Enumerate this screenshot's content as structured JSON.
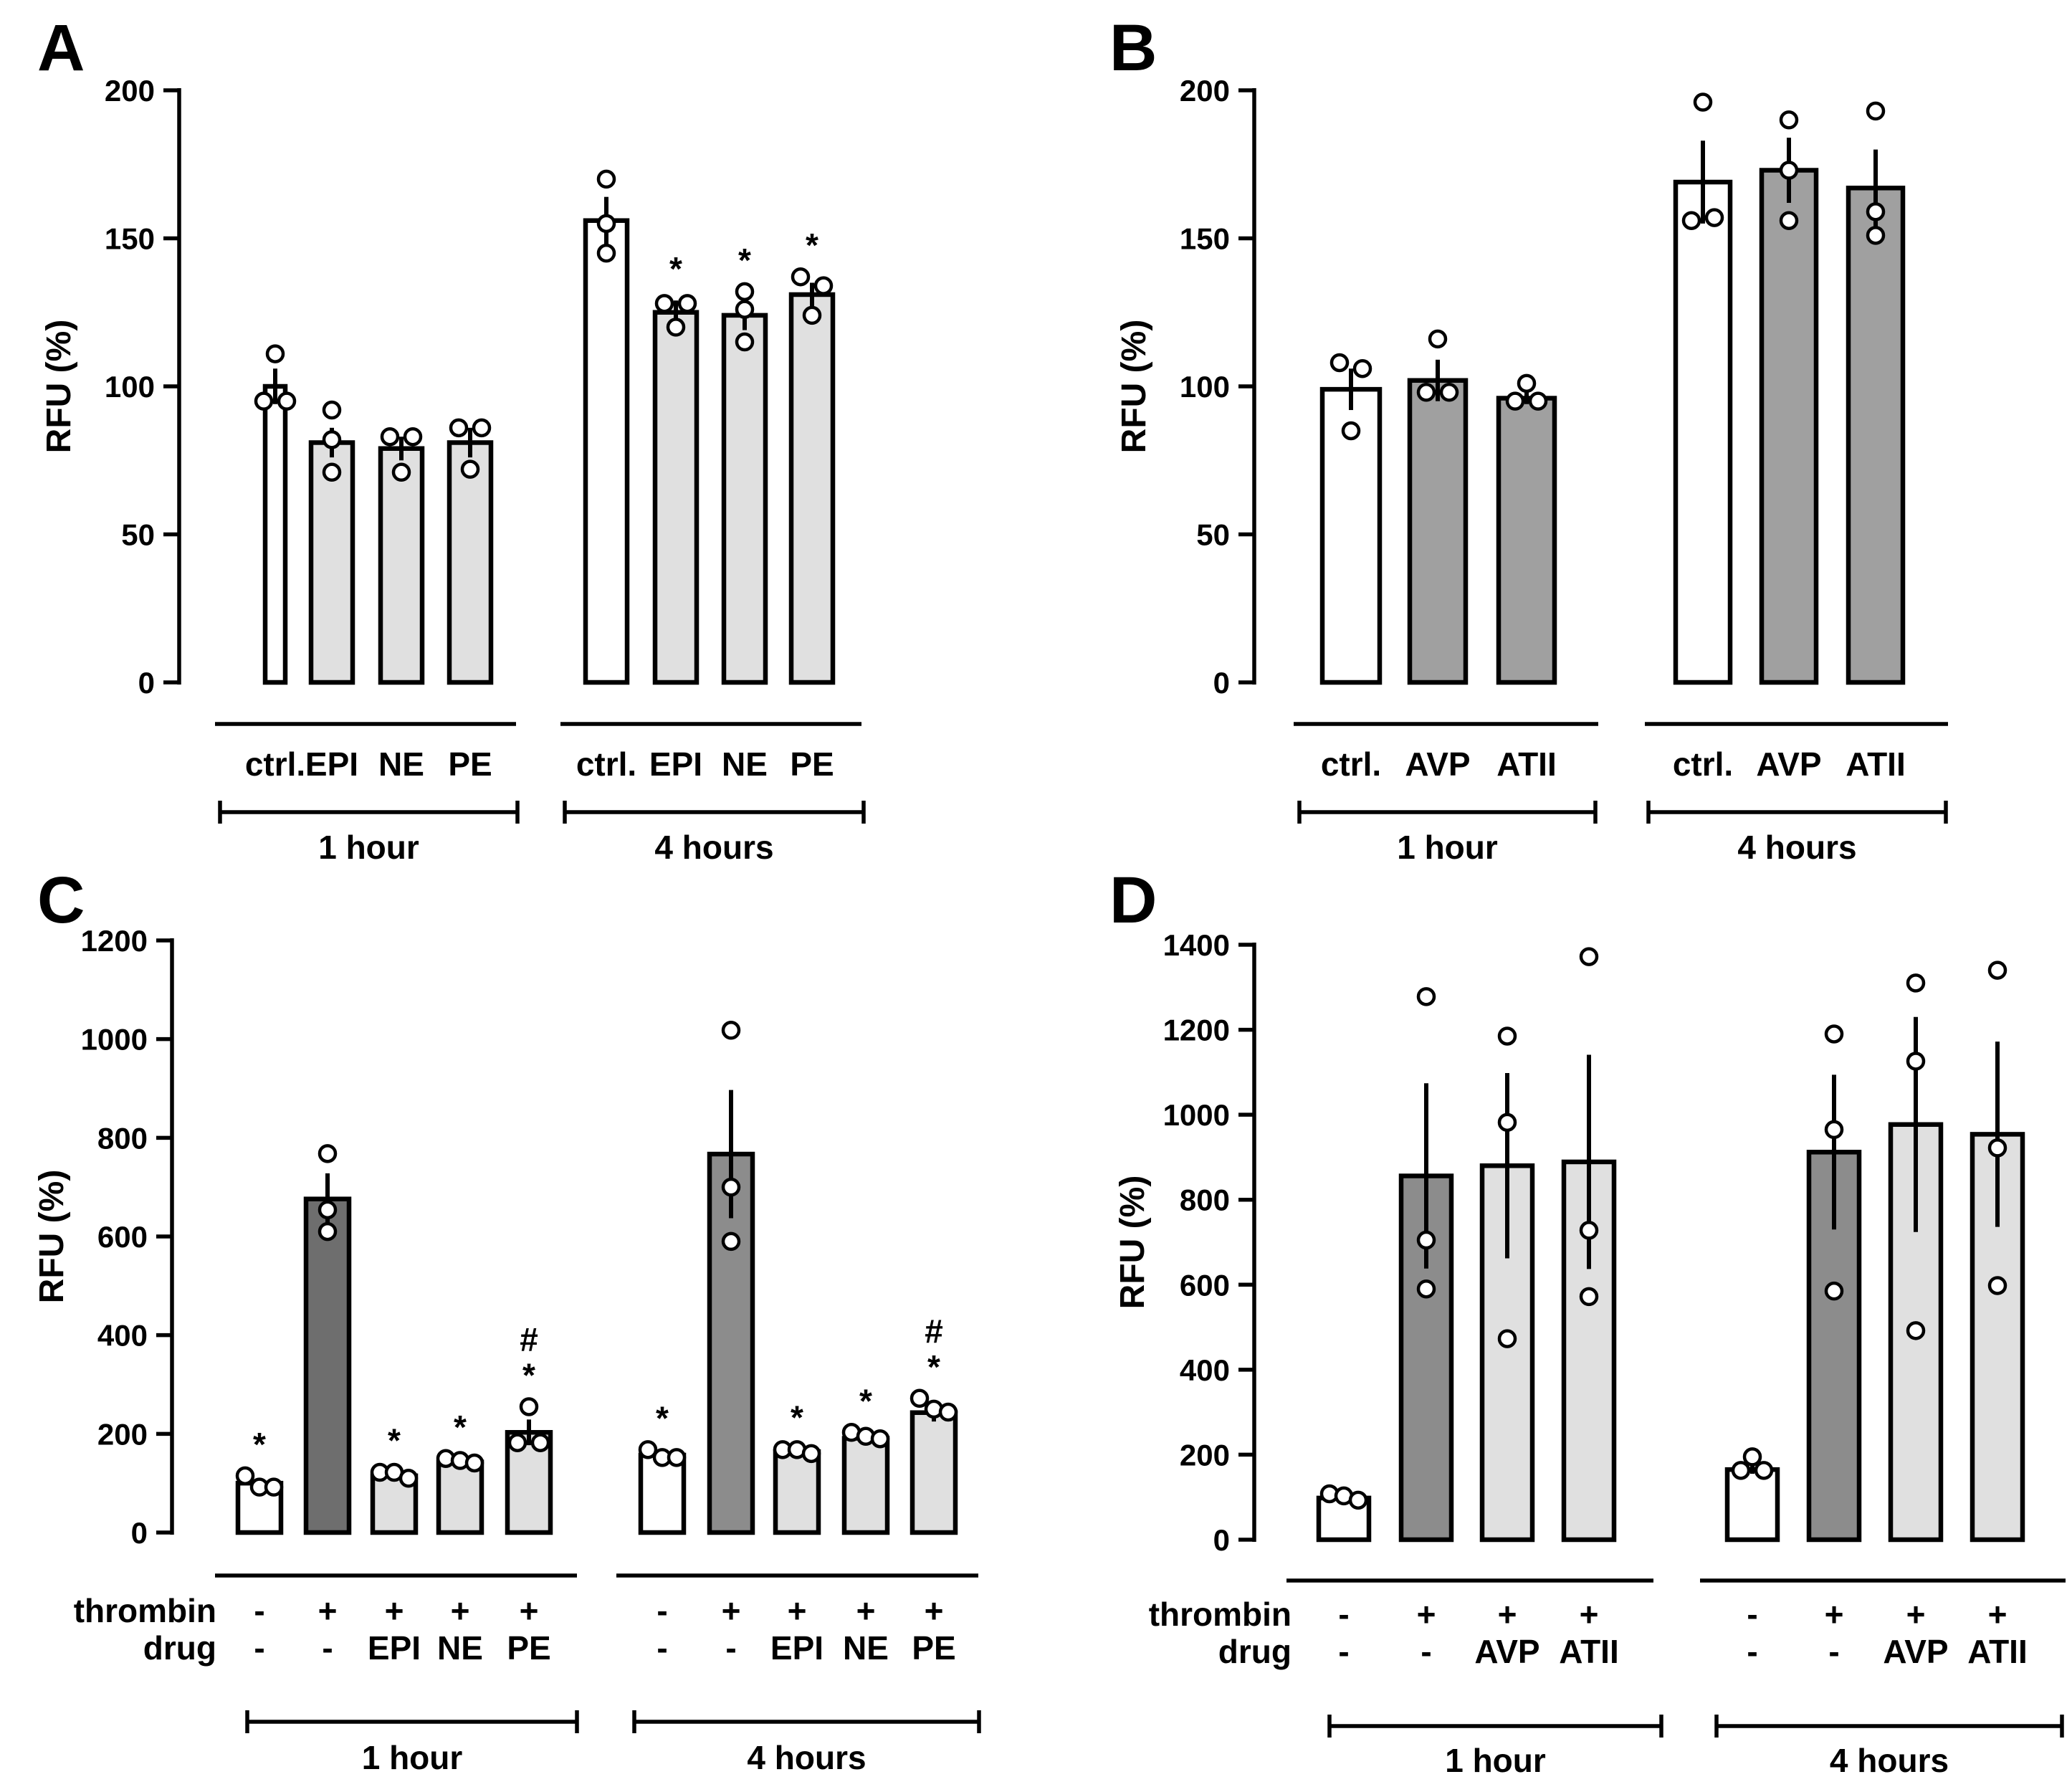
{
  "chart_data": [
    {
      "panel": "A",
      "type": "bar",
      "ylabel": "RFU (%)",
      "ylim": [
        0,
        200
      ],
      "yticks": [
        0,
        50,
        100,
        150,
        200
      ],
      "groups": [
        {
          "label": "1 hour",
          "bars": [
            {
              "category": "ctrl.",
              "fill": "#ffffff",
              "value": 100,
              "error": 6,
              "points": [
                111,
                95,
                95
              ],
              "sig": ""
            },
            {
              "category": "EPI",
              "fill": "#e0e0e0",
              "value": 81,
              "error": 5,
              "points": [
                92,
                82,
                71
              ],
              "sig": ""
            },
            {
              "category": "NE",
              "fill": "#e0e0e0",
              "value": 79,
              "error": 4,
              "points": [
                83,
                83,
                71
              ],
              "sig": ""
            },
            {
              "category": "PE",
              "fill": "#e0e0e0",
              "value": 81,
              "error": 5,
              "points": [
                86,
                86,
                72
              ],
              "sig": ""
            }
          ]
        },
        {
          "label": "4 hours",
          "bars": [
            {
              "category": "ctrl.",
              "fill": "#ffffff",
              "value": 156,
              "error": 8,
              "points": [
                170,
                155,
                145
              ],
              "sig": ""
            },
            {
              "category": "EPI",
              "fill": "#e0e0e0",
              "value": 125,
              "error": 4,
              "points": [
                128,
                128,
                120
              ],
              "sig": "*"
            },
            {
              "category": "NE",
              "fill": "#e0e0e0",
              "value": 124,
              "error": 5,
              "points": [
                132,
                126,
                115
              ],
              "sig": "*"
            },
            {
              "category": "PE",
              "fill": "#e0e0e0",
              "value": 131,
              "error": 4,
              "points": [
                137,
                134,
                124
              ],
              "sig": "*"
            }
          ]
        }
      ]
    },
    {
      "panel": "B",
      "type": "bar",
      "ylabel": "RFU (%)",
      "ylim": [
        0,
        200
      ],
      "yticks": [
        0,
        50,
        100,
        150,
        200
      ],
      "groups": [
        {
          "label": "1 hour",
          "bars": [
            {
              "category": "ctrl.",
              "fill": "#ffffff",
              "value": 99,
              "error": 7,
              "points": [
                108,
                106,
                85
              ],
              "sig": ""
            },
            {
              "category": "AVP",
              "fill": "#a0a0a0",
              "value": 102,
              "error": 7,
              "points": [
                116,
                98,
                98
              ],
              "sig": ""
            },
            {
              "category": "ATII",
              "fill": "#a0a0a0",
              "value": 96,
              "error": 2,
              "points": [
                101,
                95,
                95
              ],
              "sig": ""
            }
          ]
        },
        {
          "label": "4 hours",
          "bars": [
            {
              "category": "ctrl.",
              "fill": "#ffffff",
              "value": 169,
              "error": 14,
              "points": [
                196,
                156,
                157
              ],
              "sig": ""
            },
            {
              "category": "AVP",
              "fill": "#a0a0a0",
              "value": 173,
              "error": 11,
              "points": [
                190,
                173,
                156
              ],
              "sig": ""
            },
            {
              "category": "ATII",
              "fill": "#a0a0a0",
              "value": 167,
              "error": 13,
              "points": [
                193,
                159,
                151
              ],
              "sig": ""
            }
          ]
        }
      ]
    },
    {
      "panel": "C",
      "type": "bar",
      "ylabel": "RFU (%)",
      "ylim": [
        0,
        1200
      ],
      "yticks": [
        0,
        200,
        400,
        600,
        800,
        1000,
        1200
      ],
      "row_labels": [
        "thrombin",
        "drug"
      ],
      "groups": [
        {
          "label": "1 hour",
          "bars": [
            {
              "thrombin": "-",
              "drug": "-",
              "fill": "#ffffff",
              "value": 100,
              "error": 8,
              "points": [
                115,
                92,
                92
              ],
              "sig": "*"
            },
            {
              "thrombin": "+",
              "drug": "-",
              "fill": "#6e6e6e",
              "value": 676,
              "error": 52,
              "points": [
                768,
                654,
                610
              ],
              "sig": ""
            },
            {
              "thrombin": "+",
              "drug": "EPI",
              "fill": "#e0e0e0",
              "value": 115,
              "error": 8,
              "points": [
                122,
                122,
                110
              ],
              "sig": "*"
            },
            {
              "thrombin": "+",
              "drug": "NE",
              "fill": "#e0e0e0",
              "value": 143,
              "error": 6,
              "points": [
                150,
                146,
                141
              ],
              "sig": "*"
            },
            {
              "thrombin": "+",
              "drug": "PE",
              "fill": "#e0e0e0",
              "value": 203,
              "error": 26,
              "points": [
                255,
                182,
                182
              ],
              "sig": "#\n*"
            }
          ]
        },
        {
          "label": "4 hours",
          "bars": [
            {
              "thrombin": "-",
              "drug": "-",
              "fill": "#ffffff",
              "value": 157,
              "error": 6,
              "points": [
                168,
                152,
                152
              ],
              "sig": "*"
            },
            {
              "thrombin": "+",
              "drug": "-",
              "fill": "#8c8c8c",
              "value": 767,
              "error": 130,
              "points": [
                1018,
                700,
                590
              ],
              "sig": ""
            },
            {
              "thrombin": "+",
              "drug": "EPI",
              "fill": "#e0e0e0",
              "value": 164,
              "error": 5,
              "points": [
                168,
                168,
                160
              ],
              "sig": "*"
            },
            {
              "thrombin": "+",
              "drug": "NE",
              "fill": "#e0e0e0",
              "value": 191,
              "error": 7,
              "points": [
                203,
                195,
                190
              ],
              "sig": "*"
            },
            {
              "thrombin": "+",
              "drug": "PE",
              "fill": "#e0e0e0",
              "value": 243,
              "error": 18,
              "points": [
                272,
                250,
                244
              ],
              "sig": "#\n*"
            }
          ]
        }
      ]
    },
    {
      "panel": "D",
      "type": "bar",
      "ylabel": "RFU (%)",
      "ylim": [
        0,
        1400
      ],
      "yticks": [
        0,
        200,
        400,
        600,
        800,
        1000,
        1200,
        1400
      ],
      "row_labels": [
        "thrombin",
        "drug"
      ],
      "groups": [
        {
          "label": "1 hour",
          "bars": [
            {
              "thrombin": "-",
              "drug": "-",
              "fill": "#ffffff",
              "value": 98,
              "error": 5,
              "points": [
                108,
                103,
                93
              ],
              "sig": ""
            },
            {
              "thrombin": "+",
              "drug": "-",
              "fill": "#8c8c8c",
              "value": 856,
              "error": 218,
              "points": [
                1278,
                705,
                590
              ],
              "sig": ""
            },
            {
              "thrombin": "+",
              "drug": "AVP",
              "fill": "#e0e0e0",
              "value": 880,
              "error": 218,
              "points": [
                1185,
                982,
                473
              ],
              "sig": ""
            },
            {
              "thrombin": "+",
              "drug": "ATII",
              "fill": "#e0e0e0",
              "value": 889,
              "error": 252,
              "points": [
                1372,
                728,
                572
              ],
              "sig": ""
            }
          ]
        },
        {
          "label": "4 hours",
          "bars": [
            {
              "thrombin": "-",
              "drug": "-",
              "fill": "#ffffff",
              "value": 165,
              "error": 10,
              "points": [
                195,
                163,
                163
              ],
              "sig": ""
            },
            {
              "thrombin": "+",
              "drug": "-",
              "fill": "#8c8c8c",
              "value": 912,
              "error": 182,
              "points": [
                1190,
                965,
                585
              ],
              "sig": ""
            },
            {
              "thrombin": "+",
              "drug": "AVP",
              "fill": "#e0e0e0",
              "value": 977,
              "error": 253,
              "points": [
                1310,
                1126,
                492
              ],
              "sig": ""
            },
            {
              "thrombin": "+",
              "drug": "ATII",
              "fill": "#e0e0e0",
              "value": 954,
              "error": 218,
              "points": [
                1340,
                922,
                598
              ],
              "sig": ""
            }
          ]
        }
      ]
    }
  ]
}
